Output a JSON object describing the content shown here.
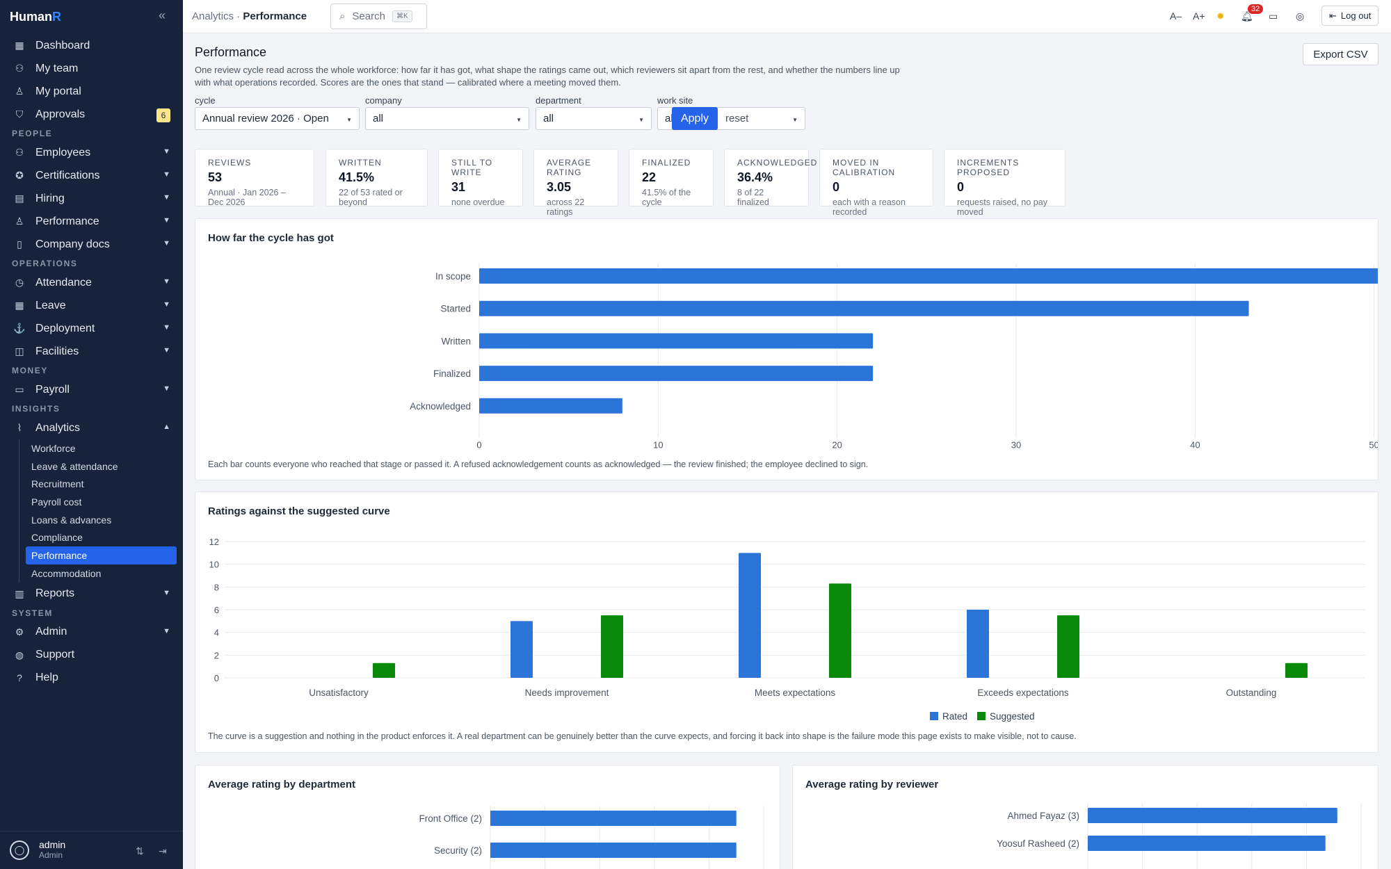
{
  "app": {
    "name": "Human",
    "name_accent": "R"
  },
  "sidebar": {
    "items": [
      {
        "label": "Dashboard",
        "icon": "grid-icon"
      },
      {
        "label": "My team",
        "icon": "team-icon"
      },
      {
        "label": "My portal",
        "icon": "user-icon"
      },
      {
        "label": "Approvals",
        "icon": "shield-icon",
        "badge": "6"
      }
    ],
    "sections": [
      {
        "title": "PEOPLE",
        "items": [
          "Employees",
          "Certifications",
          "Hiring",
          "Performance",
          "Company docs"
        ]
      },
      {
        "title": "OPERATIONS",
        "items": [
          "Attendance",
          "Leave",
          "Deployment",
          "Facilities"
        ]
      },
      {
        "title": "MONEY",
        "items": [
          "Payroll"
        ]
      },
      {
        "title": "INSIGHTS",
        "items": [
          "Analytics"
        ]
      }
    ],
    "analytics_sub": [
      "Workforce",
      "Leave & attendance",
      "Recruitment",
      "Payroll cost",
      "Loans & advances",
      "Compliance",
      "Performance",
      "Accommodation"
    ],
    "reports": "Reports",
    "system": {
      "title": "SYSTEM",
      "items": [
        "Admin",
        "Support",
        "Help"
      ]
    },
    "user": {
      "name": "admin",
      "role": "Admin"
    }
  },
  "topbar": {
    "crumb_parent": "Analytics",
    "crumb_sep": "·",
    "crumb_current": "Performance",
    "search_label": "Search",
    "search_kbd": "⌘K",
    "font_dec": "A–",
    "font_inc": "A+",
    "notifications": "32",
    "logout": "Log out"
  },
  "page": {
    "title": "Performance",
    "description": "One review cycle read across the whole workforce: how far it has got, what shape the ratings came out, which reviewers sit apart from the rest, and whether the numbers line up with what operations recorded. Scores are the ones that stand — calibrated where a meeting moved them.",
    "export": "Export CSV"
  },
  "filters": [
    {
      "label": "cycle",
      "value": "Annual review 2026 · Open"
    },
    {
      "label": "company",
      "value": "all"
    },
    {
      "label": "department",
      "value": "all"
    },
    {
      "label": "work site",
      "value": "all"
    }
  ],
  "filter_actions": {
    "apply": "Apply",
    "reset": "reset"
  },
  "stats": [
    {
      "label": "REVIEWS",
      "value": "53",
      "sub": "Annual · Jan 2026 – Dec 2026"
    },
    {
      "label": "WRITTEN",
      "value": "41.5%",
      "sub": "22 of 53 rated or beyond"
    },
    {
      "label": "STILL TO WRITE",
      "value": "31",
      "sub": "none overdue"
    },
    {
      "label": "AVERAGE RATING",
      "value": "3.05",
      "sub": "across 22 ratings"
    },
    {
      "label": "FINALIZED",
      "value": "22",
      "sub": "41.5% of the cycle"
    },
    {
      "label": "ACKNOWLEDGED",
      "value": "36.4%",
      "sub": "8 of 22 finalized"
    },
    {
      "label": "MOVED IN CALIBRATION",
      "value": "0",
      "sub": "each with a reason recorded"
    },
    {
      "label": "INCREMENTS PROPOSED",
      "value": "0",
      "sub": "requests raised, no pay moved"
    }
  ],
  "chart_data": [
    {
      "type": "bar",
      "orientation": "horizontal",
      "title": "How far the cycle has got",
      "categories": [
        "In scope",
        "Started",
        "Written",
        "Finalized",
        "Acknowledged"
      ],
      "values": [
        53,
        43,
        22,
        22,
        8
      ],
      "xlim": [
        0,
        60
      ],
      "xticks": [
        0,
        10,
        20,
        30,
        40,
        50,
        60
      ],
      "grid": true,
      "color": "#2b74d8",
      "note": "Each bar counts everyone who reached that stage or passed it. A refused acknowledgement counts as acknowledged — the review finished; the employee declined to sign."
    },
    {
      "type": "bar",
      "title": "Ratings against the suggested curve",
      "categories": [
        "Unsatisfactory",
        "Needs improvement",
        "Meets expectations",
        "Exceeds expectations",
        "Outstanding"
      ],
      "series": [
        {
          "name": "Rated",
          "values": [
            0,
            5,
            11,
            6,
            0
          ],
          "color": "#2b74d8"
        },
        {
          "name": "Suggested",
          "values": [
            1.3,
            5.5,
            8.3,
            5.5,
            1.3
          ],
          "color": "#088a08"
        }
      ],
      "ylim": [
        0,
        12
      ],
      "yticks": [
        0,
        2,
        4,
        6,
        8,
        10,
        12
      ],
      "grid": true,
      "legend": "bottom-center",
      "note": "The curve is a suggestion and nothing in the product enforces it. A real department can be genuinely better than the curve expects, and forcing it back into shape is the failure mode this page exists to make visible, not to cause."
    },
    {
      "type": "bar",
      "orientation": "horizontal",
      "title": "Average rating by department",
      "categories": [
        "Front Office (2)",
        "Security (2)"
      ],
      "values": [
        4.5,
        4.5
      ],
      "xlim": [
        0,
        5
      ],
      "grid": true,
      "color": "#2b74d8"
    },
    {
      "type": "bar",
      "orientation": "horizontal",
      "title": "Average rating by reviewer",
      "categories": [
        "Ahmed Fayaz (3)",
        "Yoosuf Rasheed (2)"
      ],
      "values": [
        4.2,
        4.0
      ],
      "xlim": [
        0,
        4.6
      ],
      "grid": true,
      "color": "#2b74d8"
    }
  ]
}
